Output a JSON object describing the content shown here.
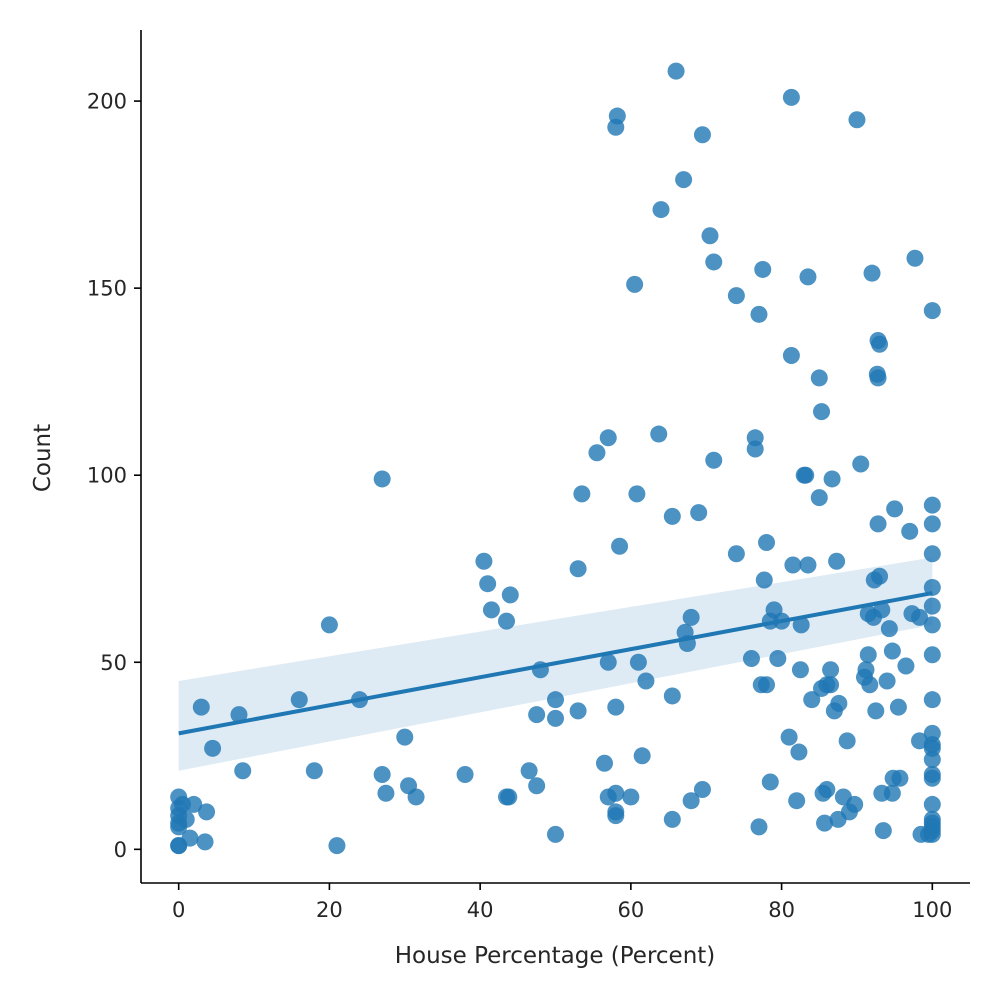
{
  "chart_data": {
    "type": "scatter",
    "xlabel": "House Percentage (Percent)",
    "ylabel": "Count",
    "xlim": [
      -5,
      105
    ],
    "ylim": [
      -9,
      219
    ],
    "xticks": [
      0,
      20,
      40,
      60,
      80,
      100
    ],
    "yticks": [
      0,
      50,
      100,
      150,
      200
    ],
    "grid": false,
    "color": "#1f77b4",
    "regression": {
      "x": [
        0,
        100
      ],
      "y": [
        31,
        68.5
      ],
      "ci_upper": [
        45,
        78
      ],
      "ci_lower": [
        21,
        60
      ]
    },
    "points": [
      {
        "x": 0,
        "y": 14
      },
      {
        "x": 0,
        "y": 11
      },
      {
        "x": 0,
        "y": 9
      },
      {
        "x": 0,
        "y": 7
      },
      {
        "x": 0,
        "y": 6
      },
      {
        "x": 0,
        "y": 1
      },
      {
        "x": 0,
        "y": 1
      },
      {
        "x": 0.5,
        "y": 12
      },
      {
        "x": 1,
        "y": 8
      },
      {
        "x": 1.5,
        "y": 3
      },
      {
        "x": 2,
        "y": 12
      },
      {
        "x": 3,
        "y": 38
      },
      {
        "x": 3.5,
        "y": 2
      },
      {
        "x": 3.7,
        "y": 10
      },
      {
        "x": 4.5,
        "y": 27
      },
      {
        "x": 8,
        "y": 36
      },
      {
        "x": 8.5,
        "y": 21
      },
      {
        "x": 16,
        "y": 40
      },
      {
        "x": 18,
        "y": 21
      },
      {
        "x": 20,
        "y": 60
      },
      {
        "x": 21,
        "y": 1
      },
      {
        "x": 24,
        "y": 40
      },
      {
        "x": 27,
        "y": 99
      },
      {
        "x": 27,
        "y": 20
      },
      {
        "x": 27.5,
        "y": 15
      },
      {
        "x": 30,
        "y": 30
      },
      {
        "x": 30.5,
        "y": 17
      },
      {
        "x": 31.5,
        "y": 14
      },
      {
        "x": 38,
        "y": 20
      },
      {
        "x": 40.5,
        "y": 77
      },
      {
        "x": 41,
        "y": 71
      },
      {
        "x": 41.5,
        "y": 64
      },
      {
        "x": 43.5,
        "y": 61
      },
      {
        "x": 43.5,
        "y": 14
      },
      {
        "x": 43.8,
        "y": 14
      },
      {
        "x": 44,
        "y": 68
      },
      {
        "x": 46.5,
        "y": 21
      },
      {
        "x": 47.5,
        "y": 36
      },
      {
        "x": 47.5,
        "y": 17
      },
      {
        "x": 48,
        "y": 48
      },
      {
        "x": 50,
        "y": 40
      },
      {
        "x": 50,
        "y": 35
      },
      {
        "x": 50,
        "y": 4
      },
      {
        "x": 53,
        "y": 75
      },
      {
        "x": 53,
        "y": 37
      },
      {
        "x": 53.5,
        "y": 95
      },
      {
        "x": 55.5,
        "y": 106
      },
      {
        "x": 56.5,
        "y": 23
      },
      {
        "x": 57,
        "y": 110
      },
      {
        "x": 57,
        "y": 50
      },
      {
        "x": 57,
        "y": 14
      },
      {
        "x": 58,
        "y": 193
      },
      {
        "x": 58.2,
        "y": 196
      },
      {
        "x": 58,
        "y": 38
      },
      {
        "x": 58,
        "y": 15
      },
      {
        "x": 58,
        "y": 10
      },
      {
        "x": 58,
        "y": 9
      },
      {
        "x": 58.5,
        "y": 81
      },
      {
        "x": 60,
        "y": 14
      },
      {
        "x": 60.5,
        "y": 151
      },
      {
        "x": 60.8,
        "y": 95
      },
      {
        "x": 61,
        "y": 50
      },
      {
        "x": 61.5,
        "y": 25
      },
      {
        "x": 62,
        "y": 45
      },
      {
        "x": 63.7,
        "y": 111
      },
      {
        "x": 64,
        "y": 171
      },
      {
        "x": 65.5,
        "y": 89
      },
      {
        "x": 65.5,
        "y": 41
      },
      {
        "x": 65.5,
        "y": 8
      },
      {
        "x": 66,
        "y": 208
      },
      {
        "x": 67,
        "y": 179
      },
      {
        "x": 67.2,
        "y": 58
      },
      {
        "x": 67.5,
        "y": 55
      },
      {
        "x": 68,
        "y": 62
      },
      {
        "x": 68,
        "y": 13
      },
      {
        "x": 69,
        "y": 90
      },
      {
        "x": 69.5,
        "y": 191
      },
      {
        "x": 69.5,
        "y": 16
      },
      {
        "x": 70.5,
        "y": 164
      },
      {
        "x": 71,
        "y": 157
      },
      {
        "x": 71,
        "y": 104
      },
      {
        "x": 74,
        "y": 148
      },
      {
        "x": 74,
        "y": 79
      },
      {
        "x": 76,
        "y": 51
      },
      {
        "x": 76.5,
        "y": 110
      },
      {
        "x": 76.5,
        "y": 107
      },
      {
        "x": 77,
        "y": 143
      },
      {
        "x": 77,
        "y": 6
      },
      {
        "x": 77.3,
        "y": 44
      },
      {
        "x": 77.5,
        "y": 155
      },
      {
        "x": 77.7,
        "y": 72
      },
      {
        "x": 78,
        "y": 82
      },
      {
        "x": 78,
        "y": 44
      },
      {
        "x": 78.5,
        "y": 61
      },
      {
        "x": 78.5,
        "y": 18
      },
      {
        "x": 79,
        "y": 64
      },
      {
        "x": 79.5,
        "y": 51
      },
      {
        "x": 80,
        "y": 61
      },
      {
        "x": 81,
        "y": 30
      },
      {
        "x": 81.3,
        "y": 201
      },
      {
        "x": 81.3,
        "y": 132
      },
      {
        "x": 81.5,
        "y": 76
      },
      {
        "x": 82,
        "y": 13
      },
      {
        "x": 82.3,
        "y": 26
      },
      {
        "x": 82.5,
        "y": 48
      },
      {
        "x": 82.6,
        "y": 60
      },
      {
        "x": 83,
        "y": 100
      },
      {
        "x": 83.2,
        "y": 100
      },
      {
        "x": 83.5,
        "y": 153
      },
      {
        "x": 83.5,
        "y": 76
      },
      {
        "x": 84,
        "y": 40
      },
      {
        "x": 85,
        "y": 126
      },
      {
        "x": 85,
        "y": 94
      },
      {
        "x": 85.3,
        "y": 117
      },
      {
        "x": 85.3,
        "y": 43
      },
      {
        "x": 85.5,
        "y": 15
      },
      {
        "x": 85.7,
        "y": 7
      },
      {
        "x": 86,
        "y": 44
      },
      {
        "x": 86,
        "y": 16
      },
      {
        "x": 86.5,
        "y": 48
      },
      {
        "x": 86.5,
        "y": 44
      },
      {
        "x": 86.7,
        "y": 99
      },
      {
        "x": 87,
        "y": 37
      },
      {
        "x": 87.3,
        "y": 77
      },
      {
        "x": 87.5,
        "y": 8
      },
      {
        "x": 87.6,
        "y": 39
      },
      {
        "x": 88.2,
        "y": 14
      },
      {
        "x": 88.7,
        "y": 29
      },
      {
        "x": 89,
        "y": 10
      },
      {
        "x": 89.7,
        "y": 12
      },
      {
        "x": 90,
        "y": 195
      },
      {
        "x": 90.5,
        "y": 103
      },
      {
        "x": 91,
        "y": 46
      },
      {
        "x": 91.2,
        "y": 48
      },
      {
        "x": 91.5,
        "y": 52
      },
      {
        "x": 91.5,
        "y": 63
      },
      {
        "x": 91.7,
        "y": 44
      },
      {
        "x": 92,
        "y": 154
      },
      {
        "x": 92.2,
        "y": 62
      },
      {
        "x": 92.3,
        "y": 72
      },
      {
        "x": 92.5,
        "y": 37
      },
      {
        "x": 92.7,
        "y": 127
      },
      {
        "x": 92.8,
        "y": 136
      },
      {
        "x": 92.8,
        "y": 126
      },
      {
        "x": 93,
        "y": 135
      },
      {
        "x": 92.8,
        "y": 87
      },
      {
        "x": 93,
        "y": 73
      },
      {
        "x": 93.3,
        "y": 64
      },
      {
        "x": 93.3,
        "y": 15
      },
      {
        "x": 93.5,
        "y": 5
      },
      {
        "x": 94,
        "y": 45
      },
      {
        "x": 94.3,
        "y": 59
      },
      {
        "x": 94.7,
        "y": 53
      },
      {
        "x": 94.7,
        "y": 15
      },
      {
        "x": 95,
        "y": 91
      },
      {
        "x": 94.8,
        "y": 19
      },
      {
        "x": 95.5,
        "y": 38
      },
      {
        "x": 95.7,
        "y": 19
      },
      {
        "x": 96.5,
        "y": 49
      },
      {
        "x": 97,
        "y": 85
      },
      {
        "x": 97.3,
        "y": 63
      },
      {
        "x": 97.7,
        "y": 158
      },
      {
        "x": 98.3,
        "y": 62
      },
      {
        "x": 98.3,
        "y": 29
      },
      {
        "x": 98.5,
        "y": 4
      },
      {
        "x": 99.5,
        "y": 4
      },
      {
        "x": 100,
        "y": 144
      },
      {
        "x": 100,
        "y": 92
      },
      {
        "x": 100,
        "y": 87
      },
      {
        "x": 100,
        "y": 79
      },
      {
        "x": 100,
        "y": 70
      },
      {
        "x": 100,
        "y": 65
      },
      {
        "x": 100,
        "y": 60
      },
      {
        "x": 100,
        "y": 52
      },
      {
        "x": 100,
        "y": 40
      },
      {
        "x": 100,
        "y": 31
      },
      {
        "x": 100,
        "y": 28
      },
      {
        "x": 100,
        "y": 27
      },
      {
        "x": 100,
        "y": 24
      },
      {
        "x": 100,
        "y": 20
      },
      {
        "x": 100,
        "y": 19
      },
      {
        "x": 100,
        "y": 12
      },
      {
        "x": 100,
        "y": 8
      },
      {
        "x": 100,
        "y": 7
      },
      {
        "x": 100,
        "y": 6
      },
      {
        "x": 100,
        "y": 5
      },
      {
        "x": 100,
        "y": 4
      }
    ]
  }
}
